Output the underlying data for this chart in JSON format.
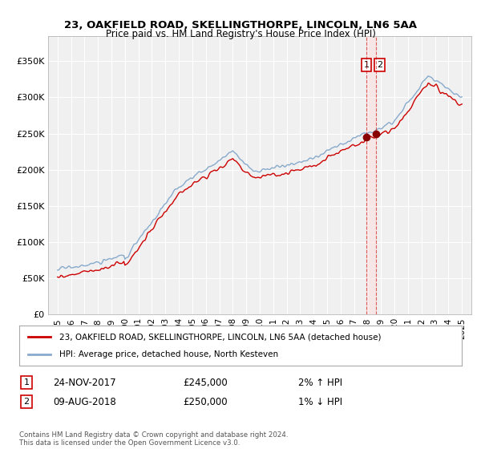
{
  "title": "23, OAKFIELD ROAD, SKELLINGTHORPE, LINCOLN, LN6 5AA",
  "subtitle": "Price paid vs. HM Land Registry's House Price Index (HPI)",
  "ylabel_ticks": [
    "£0",
    "£50K",
    "£100K",
    "£150K",
    "£200K",
    "£250K",
    "£300K",
    "£350K"
  ],
  "ytick_values": [
    0,
    50000,
    100000,
    150000,
    200000,
    250000,
    300000,
    350000
  ],
  "ylim": [
    0,
    385000
  ],
  "line1_color": "#cc0000",
  "line2_color": "#88aacc",
  "legend1": "23, OAKFIELD ROAD, SKELLINGTHORPE, LINCOLN, LN6 5AA (detached house)",
  "legend2": "HPI: Average price, detached house, North Kesteven",
  "sale1_year": 2017.88,
  "sale2_year": 2018.6,
  "sale1_val": 245000,
  "sale2_val": 250000,
  "sale1_date": "24-NOV-2017",
  "sale1_price": "£245,000",
  "sale1_hpi": "2% ↑ HPI",
  "sale2_date": "09-AUG-2018",
  "sale2_price": "£250,000",
  "sale2_hpi": "1% ↓ HPI",
  "footer": "Contains HM Land Registry data © Crown copyright and database right 2024.\nThis data is licensed under the Open Government Licence v3.0.",
  "background_color": "#ffffff",
  "plot_bg_color": "#f0f0f0",
  "grid_color": "#ffffff",
  "xlim_left": 1994.3,
  "xlim_right": 2025.7
}
